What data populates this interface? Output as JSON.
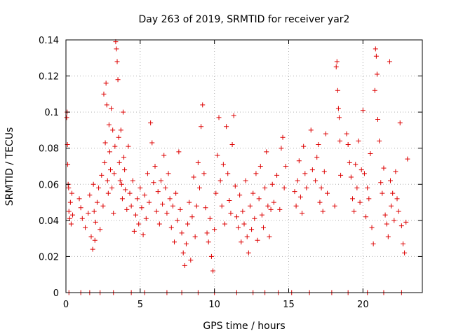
{
  "chart_data": {
    "type": "scatter",
    "title": "Day 263 of 2019, SRMTID for receiver yar2",
    "xlabel": "GPS time / hours",
    "ylabel": "SRMTID / TECUs",
    "xlim": [
      0,
      24
    ],
    "ylim": [
      0,
      0.14
    ],
    "x_ticks": [
      0,
      5,
      10,
      15,
      20
    ],
    "y_ticks": [
      0,
      0.02,
      0.04,
      0.06,
      0.08,
      0.1,
      0.12,
      0.14
    ],
    "x_tick_labels": [
      "0",
      "5",
      "10",
      "15",
      "20"
    ],
    "y_tick_labels": [
      "0",
      "0.02",
      "0.04",
      "0.06",
      "0.08",
      "0.1",
      "0.12",
      "0.14"
    ],
    "grid": true,
    "marker": "+",
    "color": "#dd0000",
    "series": [
      {
        "name": "SRMTID",
        "points": [
          [
            0.05,
            0.097
          ],
          [
            0.08,
            0.1
          ],
          [
            0.1,
            0.082
          ],
          [
            0.12,
            0.071
          ],
          [
            0.15,
            0.06
          ],
          [
            0.18,
            0.058
          ],
          [
            0.2,
            0.045
          ],
          [
            0.25,
            0.041
          ],
          [
            0.3,
            0.05
          ],
          [
            0.35,
            0.038
          ],
          [
            0.4,
            0.055
          ],
          [
            0.45,
            0.043
          ],
          [
            0.9,
            0.052
          ],
          [
            1.0,
            0.047
          ],
          [
            1.1,
            0.041
          ],
          [
            1.3,
            0.036
          ],
          [
            1.5,
            0.044
          ],
          [
            1.6,
            0.054
          ],
          [
            1.7,
            0.031
          ],
          [
            1.8,
            0.024
          ],
          [
            1.85,
            0.06
          ],
          [
            1.9,
            0.045
          ],
          [
            1.95,
            0.029
          ],
          [
            2.0,
            0.039
          ],
          [
            2.1,
            0.05
          ],
          [
            2.2,
            0.058
          ],
          [
            2.3,
            0.035
          ],
          [
            2.4,
            0.065
          ],
          [
            2.5,
            0.048
          ],
          [
            2.55,
            0.11
          ],
          [
            2.6,
            0.072
          ],
          [
            2.65,
            0.083
          ],
          [
            2.7,
            0.116
          ],
          [
            2.75,
            0.104
          ],
          [
            2.8,
            0.062
          ],
          [
            2.85,
            0.055
          ],
          [
            2.9,
            0.093
          ],
          [
            2.95,
            0.078
          ],
          [
            3.0,
            0.068
          ],
          [
            3.05,
            0.102
          ],
          [
            3.1,
            0.058
          ],
          [
            3.15,
            0.09
          ],
          [
            3.2,
            0.044
          ],
          [
            3.25,
            0.066
          ],
          [
            3.3,
            0.081
          ],
          [
            3.35,
            0.139
          ],
          [
            3.4,
            0.135
          ],
          [
            3.45,
            0.128
          ],
          [
            3.5,
            0.118
          ],
          [
            3.55,
            0.086
          ],
          [
            3.6,
            0.072
          ],
          [
            3.65,
            0.062
          ],
          [
            3.7,
            0.09
          ],
          [
            3.75,
            0.06
          ],
          [
            3.8,
            0.052
          ],
          [
            3.85,
            0.1
          ],
          [
            3.9,
            0.075
          ],
          [
            3.95,
            0.068
          ],
          [
            4.0,
            0.057
          ],
          [
            4.1,
            0.046
          ],
          [
            4.2,
            0.081
          ],
          [
            4.3,
            0.055
          ],
          [
            4.4,
            0.048
          ],
          [
            4.5,
            0.062
          ],
          [
            4.6,
            0.034
          ],
          [
            4.7,
            0.043
          ],
          [
            4.8,
            0.052
          ],
          [
            4.9,
            0.038
          ],
          [
            5.0,
            0.058
          ],
          [
            5.1,
            0.047
          ],
          [
            5.2,
            0.032
          ],
          [
            5.3,
            0.054
          ],
          [
            5.4,
            0.041
          ],
          [
            5.5,
            0.066
          ],
          [
            5.6,
            0.05
          ],
          [
            5.7,
            0.094
          ],
          [
            5.8,
            0.083
          ],
          [
            5.9,
            0.061
          ],
          [
            6.0,
            0.07
          ],
          [
            6.1,
            0.045
          ],
          [
            6.2,
            0.056
          ],
          [
            6.3,
            0.038
          ],
          [
            6.4,
            0.062
          ],
          [
            6.5,
            0.049
          ],
          [
            6.6,
            0.076
          ],
          [
            6.7,
            0.058
          ],
          [
            6.8,
            0.044
          ],
          [
            6.9,
            0.066
          ],
          [
            7.0,
            0.052
          ],
          [
            7.1,
            0.036
          ],
          [
            7.2,
            0.048
          ],
          [
            7.3,
            0.028
          ],
          [
            7.4,
            0.055
          ],
          [
            7.5,
            0.04
          ],
          [
            7.6,
            0.078
          ],
          [
            7.7,
            0.046
          ],
          [
            7.8,
            0.033
          ],
          [
            7.9,
            0.022
          ],
          [
            8.0,
            0.015
          ],
          [
            8.1,
            0.027
          ],
          [
            8.2,
            0.038
          ],
          [
            8.3,
            0.05
          ],
          [
            8.4,
            0.018
          ],
          [
            8.5,
            0.042
          ],
          [
            8.6,
            0.064
          ],
          [
            8.7,
            0.031
          ],
          [
            8.8,
            0.048
          ],
          [
            8.9,
            0.072
          ],
          [
            9.0,
            0.058
          ],
          [
            9.1,
            0.092
          ],
          [
            9.2,
            0.104
          ],
          [
            9.3,
            0.066
          ],
          [
            9.4,
            0.047
          ],
          [
            9.5,
            0.033
          ],
          [
            9.6,
            0.028
          ],
          [
            9.7,
            0.041
          ],
          [
            9.8,
            0.02
          ],
          [
            9.9,
            0.012
          ],
          [
            10.0,
            0.035
          ],
          [
            10.1,
            0.055
          ],
          [
            10.2,
            0.076
          ],
          [
            10.3,
            0.097
          ],
          [
            10.4,
            0.062
          ],
          [
            10.5,
            0.048
          ],
          [
            10.6,
            0.071
          ],
          [
            10.7,
            0.038
          ],
          [
            10.8,
            0.092
          ],
          [
            10.9,
            0.066
          ],
          [
            11.0,
            0.051
          ],
          [
            11.1,
            0.044
          ],
          [
            11.2,
            0.082
          ],
          [
            11.3,
            0.098
          ],
          [
            11.4,
            0.059
          ],
          [
            11.5,
            0.042
          ],
          [
            11.6,
            0.036
          ],
          [
            11.7,
            0.054
          ],
          [
            11.8,
            0.028
          ],
          [
            11.9,
            0.045
          ],
          [
            12.0,
            0.038
          ],
          [
            12.1,
            0.062
          ],
          [
            12.2,
            0.031
          ],
          [
            12.3,
            0.022
          ],
          [
            12.4,
            0.048
          ],
          [
            12.5,
            0.035
          ],
          [
            12.6,
            0.055
          ],
          [
            12.7,
            0.041
          ],
          [
            12.8,
            0.066
          ],
          [
            12.9,
            0.029
          ],
          [
            13.0,
            0.052
          ],
          [
            13.1,
            0.07
          ],
          [
            13.2,
            0.043
          ],
          [
            13.3,
            0.036
          ],
          [
            13.4,
            0.058
          ],
          [
            13.5,
            0.078
          ],
          [
            13.6,
            0.048
          ],
          [
            13.7,
            0.031
          ],
          [
            13.8,
            0.046
          ],
          [
            13.9,
            0.06
          ],
          [
            14.0,
            0.05
          ],
          [
            14.2,
            0.065
          ],
          [
            14.4,
            0.046
          ],
          [
            14.5,
            0.08
          ],
          [
            14.6,
            0.086
          ],
          [
            14.7,
            0.058
          ],
          [
            14.8,
            0.07
          ],
          [
            15.4,
            0.056
          ],
          [
            15.5,
            0.048
          ],
          [
            15.6,
            0.062
          ],
          [
            15.7,
            0.073
          ],
          [
            15.8,
            0.053
          ],
          [
            15.9,
            0.044
          ],
          [
            16.0,
            0.081
          ],
          [
            16.1,
            0.066
          ],
          [
            16.2,
            0.058
          ],
          [
            16.5,
            0.09
          ],
          [
            16.6,
            0.068
          ],
          [
            16.8,
            0.062
          ],
          [
            16.9,
            0.075
          ],
          [
            17.0,
            0.082
          ],
          [
            17.1,
            0.05
          ],
          [
            17.2,
            0.058
          ],
          [
            17.3,
            0.045
          ],
          [
            17.4,
            0.067
          ],
          [
            17.5,
            0.088
          ],
          [
            17.6,
            0.055
          ],
          [
            18.1,
            0.048
          ],
          [
            18.2,
            0.125
          ],
          [
            18.25,
            0.128
          ],
          [
            18.3,
            0.112
          ],
          [
            18.35,
            0.102
          ],
          [
            18.4,
            0.097
          ],
          [
            18.45,
            0.084
          ],
          [
            18.5,
            0.065
          ],
          [
            18.9,
            0.088
          ],
          [
            19.0,
            0.082
          ],
          [
            19.1,
            0.072
          ],
          [
            19.2,
            0.064
          ],
          [
            19.3,
            0.052
          ],
          [
            19.4,
            0.045
          ],
          [
            19.5,
            0.071
          ],
          [
            19.6,
            0.058
          ],
          [
            19.7,
            0.084
          ],
          [
            19.8,
            0.05
          ],
          [
            19.9,
            0.068
          ],
          [
            20.0,
            0.101
          ],
          [
            20.1,
            0.066
          ],
          [
            20.2,
            0.042
          ],
          [
            20.3,
            0.058
          ],
          [
            20.4,
            0.052
          ],
          [
            20.5,
            0.077
          ],
          [
            20.6,
            0.036
          ],
          [
            20.7,
            0.027
          ],
          [
            20.8,
            0.112
          ],
          [
            20.85,
            0.135
          ],
          [
            20.9,
            0.131
          ],
          [
            20.95,
            0.121
          ],
          [
            21.0,
            0.096
          ],
          [
            21.1,
            0.084
          ],
          [
            21.2,
            0.061
          ],
          [
            21.3,
            0.055
          ],
          [
            21.4,
            0.069
          ],
          [
            21.5,
            0.043
          ],
          [
            21.6,
            0.038
          ],
          [
            21.7,
            0.031
          ],
          [
            21.8,
            0.128
          ],
          [
            21.85,
            0.062
          ],
          [
            21.9,
            0.048
          ],
          [
            22.0,
            0.055
          ],
          [
            22.1,
            0.04
          ],
          [
            22.2,
            0.067
          ],
          [
            22.3,
            0.052
          ],
          [
            22.4,
            0.045
          ],
          [
            22.5,
            0.094
          ],
          [
            22.6,
            0.037
          ],
          [
            22.7,
            0.027
          ],
          [
            22.8,
            0.022
          ],
          [
            22.9,
            0.039
          ],
          [
            23.0,
            0.074
          ],
          [
            0.2,
            0.0
          ],
          [
            1.0,
            0.0
          ],
          [
            1.6,
            0.0
          ],
          [
            2.3,
            0.0
          ],
          [
            3.2,
            0.0
          ],
          [
            4.4,
            0.0
          ],
          [
            5.3,
            0.0
          ],
          [
            6.8,
            0.0
          ],
          [
            7.8,
            0.0
          ],
          [
            8.9,
            0.0
          ],
          [
            10.0,
            0.0
          ],
          [
            11.5,
            0.0
          ],
          [
            12.6,
            0.0
          ],
          [
            13.4,
            0.0
          ],
          [
            14.3,
            0.0
          ],
          [
            15.2,
            0.0
          ],
          [
            16.4,
            0.0
          ],
          [
            17.9,
            0.0
          ],
          [
            19.0,
            0.0
          ],
          [
            20.3,
            0.0
          ],
          [
            21.4,
            0.0
          ],
          [
            22.6,
            0.0
          ]
        ]
      }
    ]
  }
}
